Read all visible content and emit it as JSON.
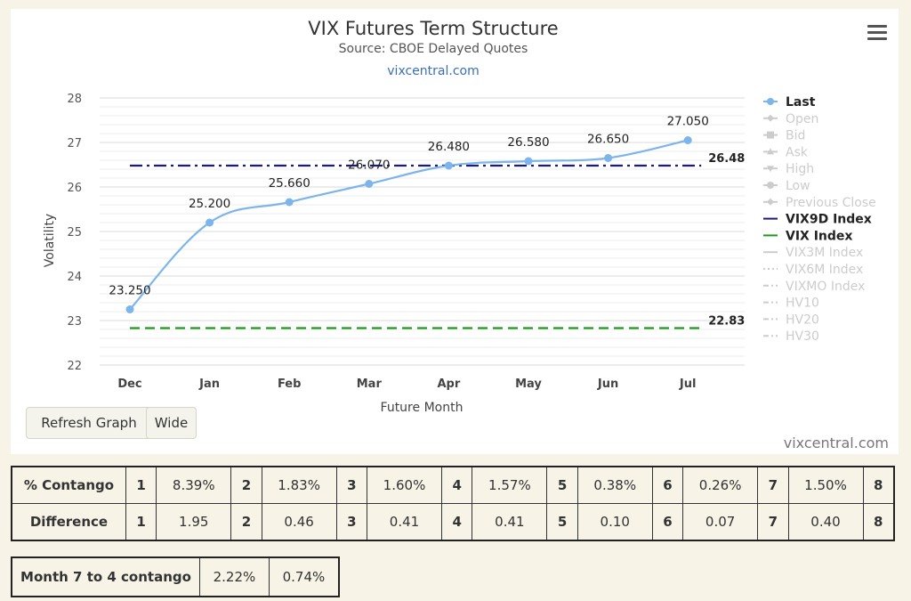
{
  "chart_data": {
    "type": "line",
    "title": "VIX Futures Term Structure",
    "subtitle": "Source: CBOE Delayed Quotes",
    "site_link": "vixcentral.com",
    "credit": "vixcentral.com",
    "xlabel": "Future Month",
    "ylabel": "Volatility",
    "categories": [
      "Dec",
      "Jan",
      "Feb",
      "Mar",
      "Apr",
      "May",
      "Jun",
      "Jul"
    ],
    "ylim": [
      22,
      28
    ],
    "yticks": [
      22,
      23,
      24,
      25,
      26,
      27,
      28
    ],
    "grid": true,
    "legend_position": "right",
    "series": [
      {
        "name": "Last",
        "values": [
          23.25,
          25.2,
          25.66,
          26.07,
          26.48,
          26.58,
          26.65,
          27.05
        ],
        "labels": [
          "23.250",
          "25.200",
          "25.660",
          "26.070",
          "26.480",
          "26.580",
          "26.650",
          "27.050"
        ],
        "color": "#7cb5ec"
      }
    ],
    "reference_lines": [
      {
        "name": "VIX9D Index",
        "value": 26.48,
        "label": "26.48",
        "color": "#1a1a80",
        "style": "dashdot"
      },
      {
        "name": "VIX Index",
        "value": 22.83,
        "label": "22.83",
        "color": "#1f9a1f",
        "style": "dash"
      }
    ],
    "legend": [
      {
        "name": "Last",
        "active": true,
        "symbol": "circle-line",
        "color": "#7cb5ec"
      },
      {
        "name": "Open",
        "active": false,
        "symbol": "diamond-line"
      },
      {
        "name": "Bid",
        "active": false,
        "symbol": "square-line"
      },
      {
        "name": "Ask",
        "active": false,
        "symbol": "triangle-line"
      },
      {
        "name": "High",
        "active": false,
        "symbol": "triangle-down-line"
      },
      {
        "name": "Low",
        "active": false,
        "symbol": "circle-line"
      },
      {
        "name": "Previous Close",
        "active": false,
        "symbol": "diamond-line"
      },
      {
        "name": "VIX9D Index",
        "active": true,
        "symbol": "line",
        "color": "#1a1a80"
      },
      {
        "name": "VIX Index",
        "active": true,
        "symbol": "line",
        "color": "#1f9a1f"
      },
      {
        "name": "VIX3M Index",
        "active": false,
        "symbol": "line"
      },
      {
        "name": "VIX6M Index",
        "active": false,
        "symbol": "dotted"
      },
      {
        "name": "VIXMO Index",
        "active": false,
        "symbol": "dashdot"
      },
      {
        "name": "HV10",
        "active": false,
        "symbol": "dashdot"
      },
      {
        "name": "HV20",
        "active": false,
        "symbol": "dashdot"
      },
      {
        "name": "HV30",
        "active": false,
        "symbol": "dashdot"
      }
    ]
  },
  "buttons": {
    "refresh": "Refresh Graph",
    "wide": "Wide"
  },
  "menu_icon": "hamburger-menu-icon",
  "stats": {
    "rows": [
      {
        "label": "% Contango",
        "cells": [
          [
            "1",
            "8.39%"
          ],
          [
            "2",
            "1.83%"
          ],
          [
            "3",
            "1.60%"
          ],
          [
            "4",
            "1.57%"
          ],
          [
            "5",
            "0.38%"
          ],
          [
            "6",
            "0.26%"
          ],
          [
            "7",
            "1.50%"
          ]
        ],
        "last_index": "8"
      },
      {
        "label": "Difference",
        "cells": [
          [
            "1",
            "1.95"
          ],
          [
            "2",
            "0.46"
          ],
          [
            "3",
            "0.41"
          ],
          [
            "4",
            "0.41"
          ],
          [
            "5",
            "0.10"
          ],
          [
            "6",
            "0.07"
          ],
          [
            "7",
            "0.40"
          ]
        ],
        "last_index": "8"
      }
    ]
  },
  "month74": {
    "label": "Month 7 to 4 contango",
    "values": [
      "2.22%",
      "0.74%"
    ]
  }
}
